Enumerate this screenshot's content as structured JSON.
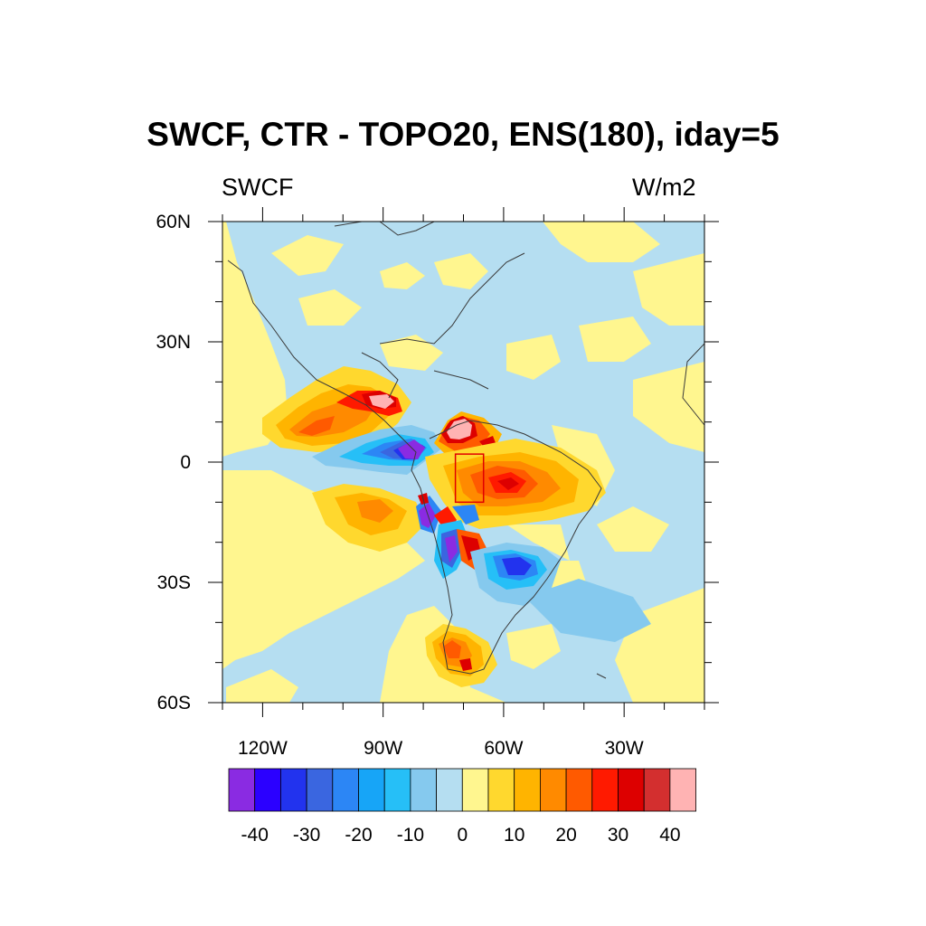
{
  "title": "SWCF, CTR - TOPO20, ENS(180), iday=5",
  "left_string": "SWCF",
  "right_string": "W/m2",
  "map": {
    "lon_range": [
      -130,
      -10
    ],
    "lat_range": [
      -60,
      60
    ],
    "lat_labels": [
      {
        "lat": 60,
        "label": "60N"
      },
      {
        "lat": 30,
        "label": "30N"
      },
      {
        "lat": 0,
        "label": "0"
      },
      {
        "lat": -30,
        "label": "30S"
      },
      {
        "lat": -60,
        "label": "60S"
      }
    ],
    "lon_labels": [
      {
        "lon": -120,
        "label": "120W"
      },
      {
        "lon": -90,
        "label": "90W"
      },
      {
        "lon": -60,
        "label": "60W"
      },
      {
        "lon": -30,
        "label": "30W"
      }
    ],
    "box": {
      "lon": [
        -72,
        -65
      ],
      "lat": [
        -10,
        2
      ],
      "color": "#e00000"
    }
  },
  "colorbar": {
    "colors": [
      "#8a2be2",
      "#2b00ff",
      "#2233ee",
      "#3a66e0",
      "#2c86f5",
      "#17a5f7",
      "#26bff7",
      "#85c9ee",
      "#b5def1",
      "#fff68f",
      "#ffd82e",
      "#ffb400",
      "#ff8a00",
      "#ff5a00",
      "#ff1a00",
      "#dd0000",
      "#d32f2f",
      "#ffb3b3"
    ],
    "labels": [
      {
        "index": 1,
        "label": "-40"
      },
      {
        "index": 3,
        "label": "-30"
      },
      {
        "index": 5,
        "label": "-20"
      },
      {
        "index": 7,
        "label": "-10"
      },
      {
        "index": 9,
        "label": "0"
      },
      {
        "index": 11,
        "label": "10"
      },
      {
        "index": 13,
        "label": "20"
      },
      {
        "index": 15,
        "label": "30"
      },
      {
        "index": 17,
        "label": "40"
      }
    ]
  }
}
